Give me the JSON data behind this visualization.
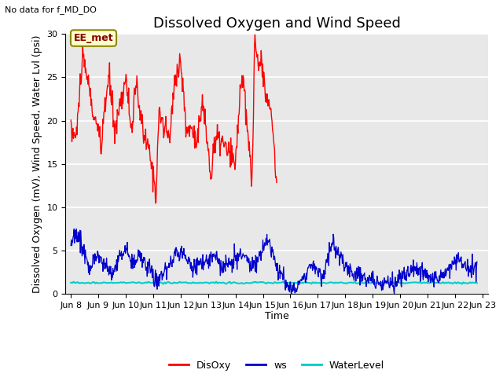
{
  "title": "Dissolved Oxygen and Wind Speed",
  "top_left_text": "No data for f_MD_DO",
  "ylabel": "Dissolved Oxygen (mV), Wind Speed, Water Lvl (psi)",
  "xlabel": "Time",
  "annotation_box": "EE_met",
  "ylim": [
    0,
    30
  ],
  "xlim_start": 7.8,
  "xlim_end": 23.2,
  "xtick_positions": [
    8,
    9,
    10,
    11,
    12,
    13,
    14,
    15,
    16,
    17,
    18,
    19,
    20,
    21,
    22,
    23
  ],
  "xtick_labels": [
    "Jun 8",
    "Jun 9",
    "Jun 10",
    "Jun 11",
    "Jun 12",
    "Jun 13",
    "Jun 14",
    "Jun 15",
    "Jun 16",
    "Jun 17",
    "Jun 18",
    "Jun 19",
    "Jun 20",
    "Jun 21",
    "Jun 22",
    "Jun 23"
  ],
  "ytick_positions": [
    0,
    5,
    10,
    15,
    20,
    25,
    30
  ],
  "background_color": "#e8e8e8",
  "grid_color": "#ffffff",
  "disoxy_color": "#ff0000",
  "ws_color": "#0000cc",
  "waterlevel_color": "#00cccc",
  "legend_labels": [
    "DisOxy",
    "ws",
    "WaterLevel"
  ],
  "title_fontsize": 13,
  "label_fontsize": 9,
  "tick_fontsize": 8
}
